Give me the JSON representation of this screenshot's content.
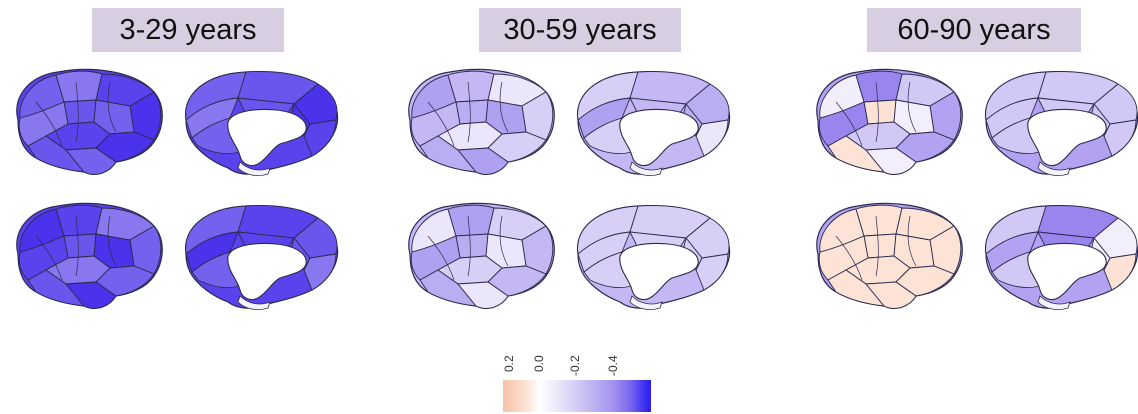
{
  "groups": [
    {
      "label": "3-29 years"
    },
    {
      "label": "30-59 years"
    },
    {
      "label": "60-90 years"
    }
  ],
  "colorbar": {
    "ticks": [
      "0.2",
      "0.0",
      "-0.2",
      "-0.4"
    ]
  }
}
